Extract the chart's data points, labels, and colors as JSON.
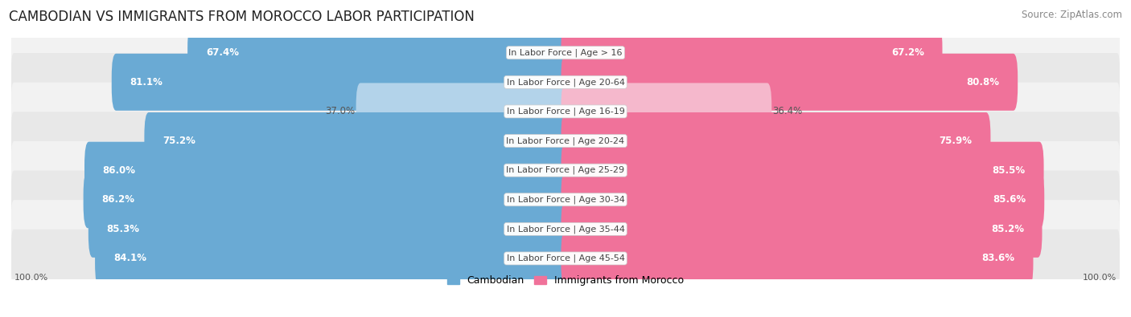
{
  "title": "CAMBODIAN VS IMMIGRANTS FROM MOROCCO LABOR PARTICIPATION",
  "source": "Source: ZipAtlas.com",
  "categories": [
    "In Labor Force | Age > 16",
    "In Labor Force | Age 20-64",
    "In Labor Force | Age 16-19",
    "In Labor Force | Age 20-24",
    "In Labor Force | Age 25-29",
    "In Labor Force | Age 30-34",
    "In Labor Force | Age 35-44",
    "In Labor Force | Age 45-54"
  ],
  "cambodian_values": [
    67.4,
    81.1,
    37.0,
    75.2,
    86.0,
    86.2,
    85.3,
    84.1
  ],
  "morocco_values": [
    67.2,
    80.8,
    36.4,
    75.9,
    85.5,
    85.6,
    85.2,
    83.6
  ],
  "cambodian_color": "#6aaad4",
  "cambodian_color_light": "#b3d3ea",
  "morocco_color": "#f0729a",
  "morocco_color_light": "#f5b8cc",
  "row_bg_color_even": "#f2f2f2",
  "row_bg_color_odd": "#e8e8e8",
  "title_fontsize": 12,
  "source_fontsize": 8.5,
  "bar_label_fontsize": 8.5,
  "category_fontsize": 8,
  "legend_fontsize": 9,
  "footer_fontsize": 8,
  "max_value": 100.0,
  "footer_label": "100.0%"
}
